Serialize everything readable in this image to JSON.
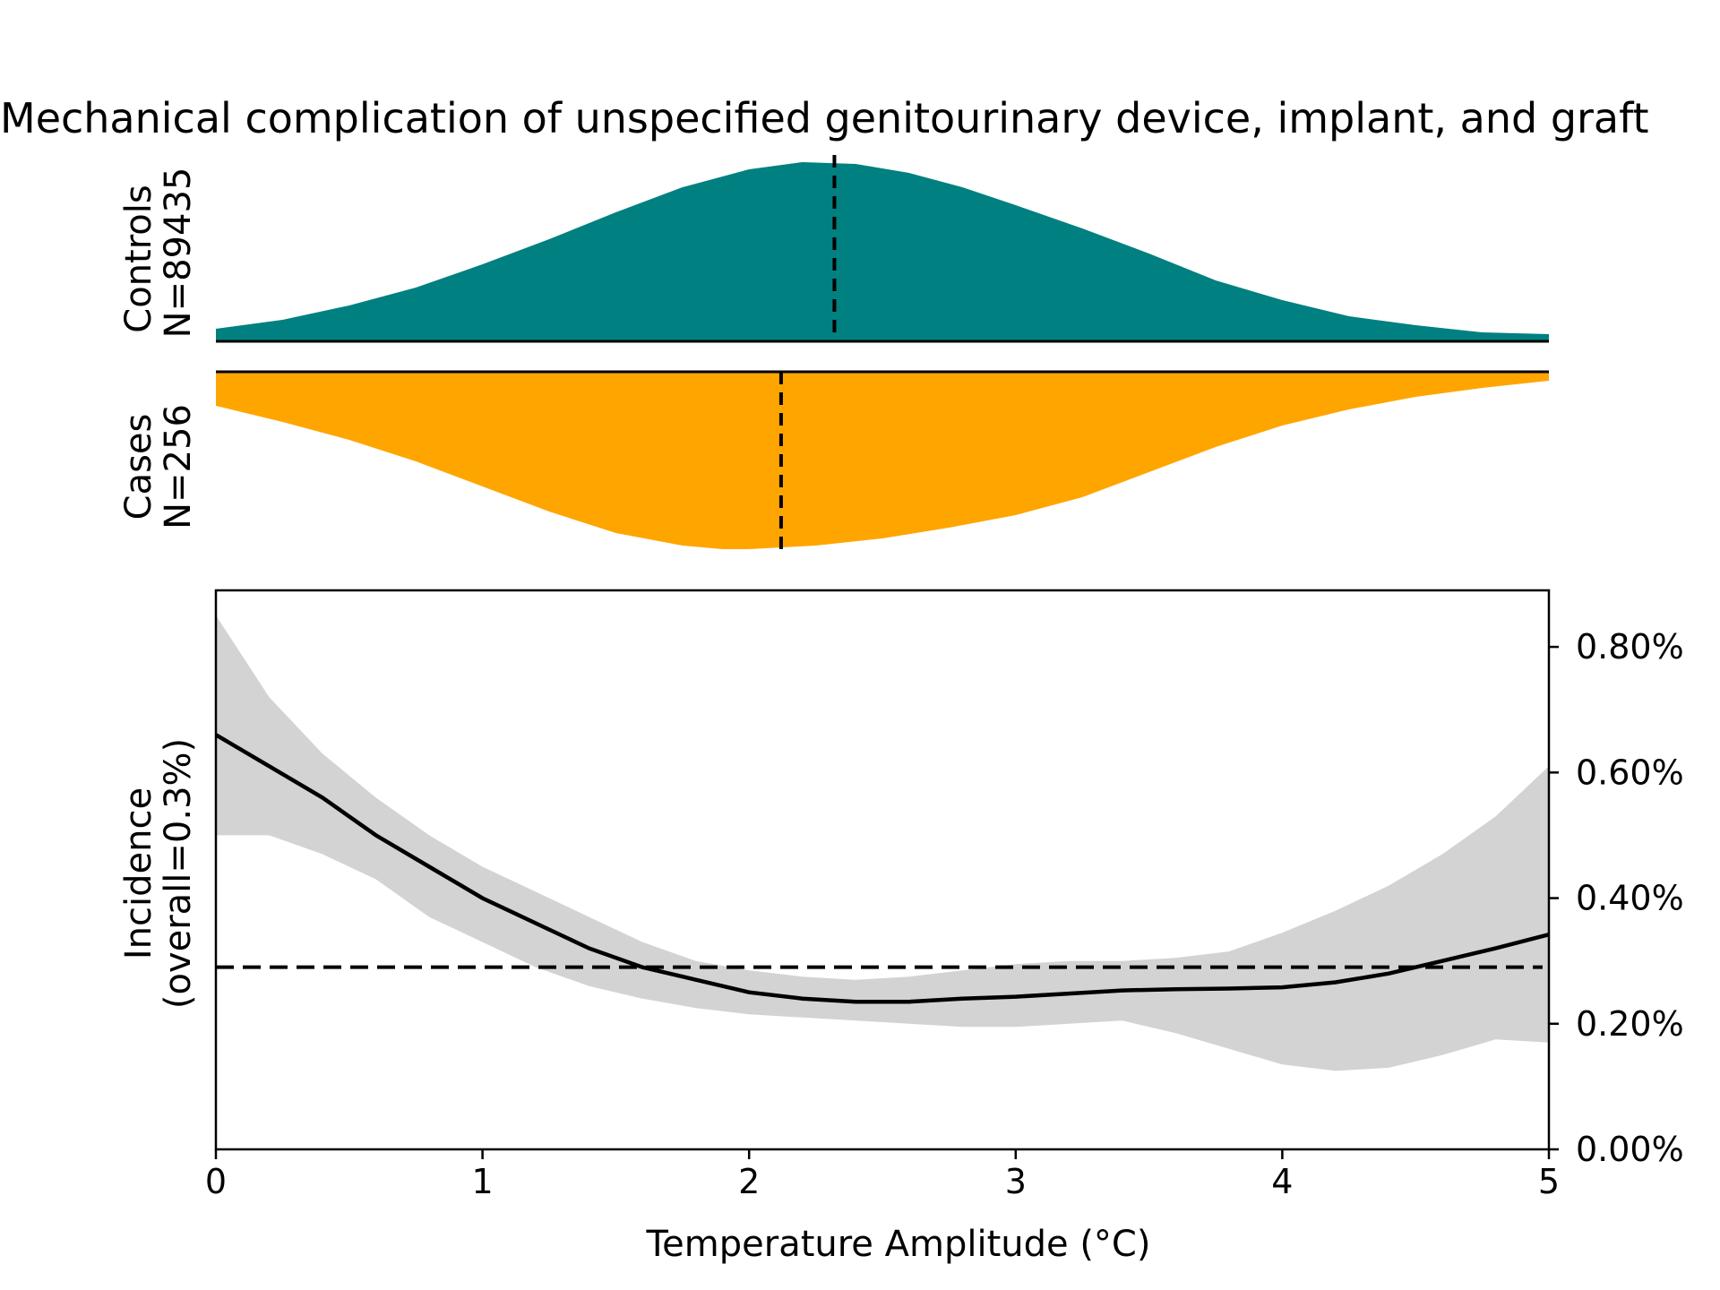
{
  "chart_data": {
    "type": "line",
    "title": "Mechanical complication of unspecified genitourinary device, implant, and graft",
    "colors": {
      "controls": "#008080",
      "cases": "#FFA500",
      "ci_band": "#D3D3D3",
      "line": "#000000"
    },
    "distributions": {
      "controls": {
        "label_line1": "Controls",
        "label_line2": "N=89435",
        "median": 2.32,
        "x": [
          0,
          0.25,
          0.5,
          0.75,
          1.0,
          1.25,
          1.5,
          1.75,
          2.0,
          2.2,
          2.4,
          2.6,
          2.8,
          3.0,
          3.25,
          3.5,
          3.75,
          4.0,
          4.25,
          4.5,
          4.75,
          5.0
        ],
        "density": [
          0.07,
          0.12,
          0.2,
          0.3,
          0.43,
          0.57,
          0.72,
          0.86,
          0.96,
          1.0,
          0.99,
          0.94,
          0.86,
          0.76,
          0.63,
          0.49,
          0.34,
          0.23,
          0.14,
          0.09,
          0.05,
          0.04
        ]
      },
      "cases": {
        "label_line1": "Cases",
        "label_line2": "N=256",
        "median": 2.12,
        "x": [
          0,
          0.25,
          0.5,
          0.75,
          1.0,
          1.25,
          1.5,
          1.75,
          1.9,
          2.0,
          2.25,
          2.5,
          2.75,
          3.0,
          3.25,
          3.5,
          3.75,
          4.0,
          4.25,
          4.5,
          4.75,
          5.0
        ],
        "density": [
          0.19,
          0.28,
          0.38,
          0.5,
          0.64,
          0.78,
          0.9,
          0.97,
          0.99,
          0.99,
          0.97,
          0.93,
          0.87,
          0.8,
          0.7,
          0.56,
          0.42,
          0.3,
          0.21,
          0.14,
          0.09,
          0.05
        ]
      }
    },
    "incidence": {
      "xlabel": "Temperature Amplitude (°C)",
      "ylabel_line1": "Incidence",
      "ylabel_line2": "(overall=0.3%)",
      "xlim": [
        0,
        5
      ],
      "ylim": [
        0,
        0.89
      ],
      "overall": 0.29,
      "x_ticks": [
        "0",
        "1",
        "2",
        "3",
        "4",
        "5"
      ],
      "y_ticks": [
        {
          "value": 0.0,
          "label": "0.00%"
        },
        {
          "value": 0.2,
          "label": "0.20%"
        },
        {
          "value": 0.4,
          "label": "0.40%"
        },
        {
          "value": 0.6,
          "label": "0.60%"
        },
        {
          "value": 0.8,
          "label": "0.80%"
        }
      ],
      "x": [
        0,
        0.2,
        0.4,
        0.6,
        0.8,
        1.0,
        1.2,
        1.4,
        1.6,
        1.8,
        2.0,
        2.2,
        2.4,
        2.6,
        2.8,
        3.0,
        3.2,
        3.4,
        3.6,
        3.8,
        4.0,
        4.2,
        4.4,
        4.6,
        4.8,
        5.0
      ],
      "mean": [
        0.66,
        0.61,
        0.56,
        0.5,
        0.45,
        0.4,
        0.36,
        0.32,
        0.29,
        0.27,
        0.25,
        0.24,
        0.235,
        0.235,
        0.24,
        0.243,
        0.248,
        0.253,
        0.255,
        0.256,
        0.258,
        0.266,
        0.28,
        0.3,
        0.32,
        0.342
      ],
      "lower": [
        0.5,
        0.5,
        0.47,
        0.43,
        0.37,
        0.33,
        0.29,
        0.26,
        0.24,
        0.225,
        0.215,
        0.21,
        0.205,
        0.2,
        0.195,
        0.195,
        0.2,
        0.205,
        0.185,
        0.16,
        0.135,
        0.125,
        0.13,
        0.15,
        0.175,
        0.17
      ],
      "upper": [
        0.85,
        0.72,
        0.63,
        0.56,
        0.5,
        0.45,
        0.41,
        0.37,
        0.33,
        0.3,
        0.285,
        0.275,
        0.27,
        0.275,
        0.285,
        0.295,
        0.3,
        0.3,
        0.305,
        0.315,
        0.345,
        0.38,
        0.42,
        0.47,
        0.53,
        0.61
      ]
    }
  }
}
